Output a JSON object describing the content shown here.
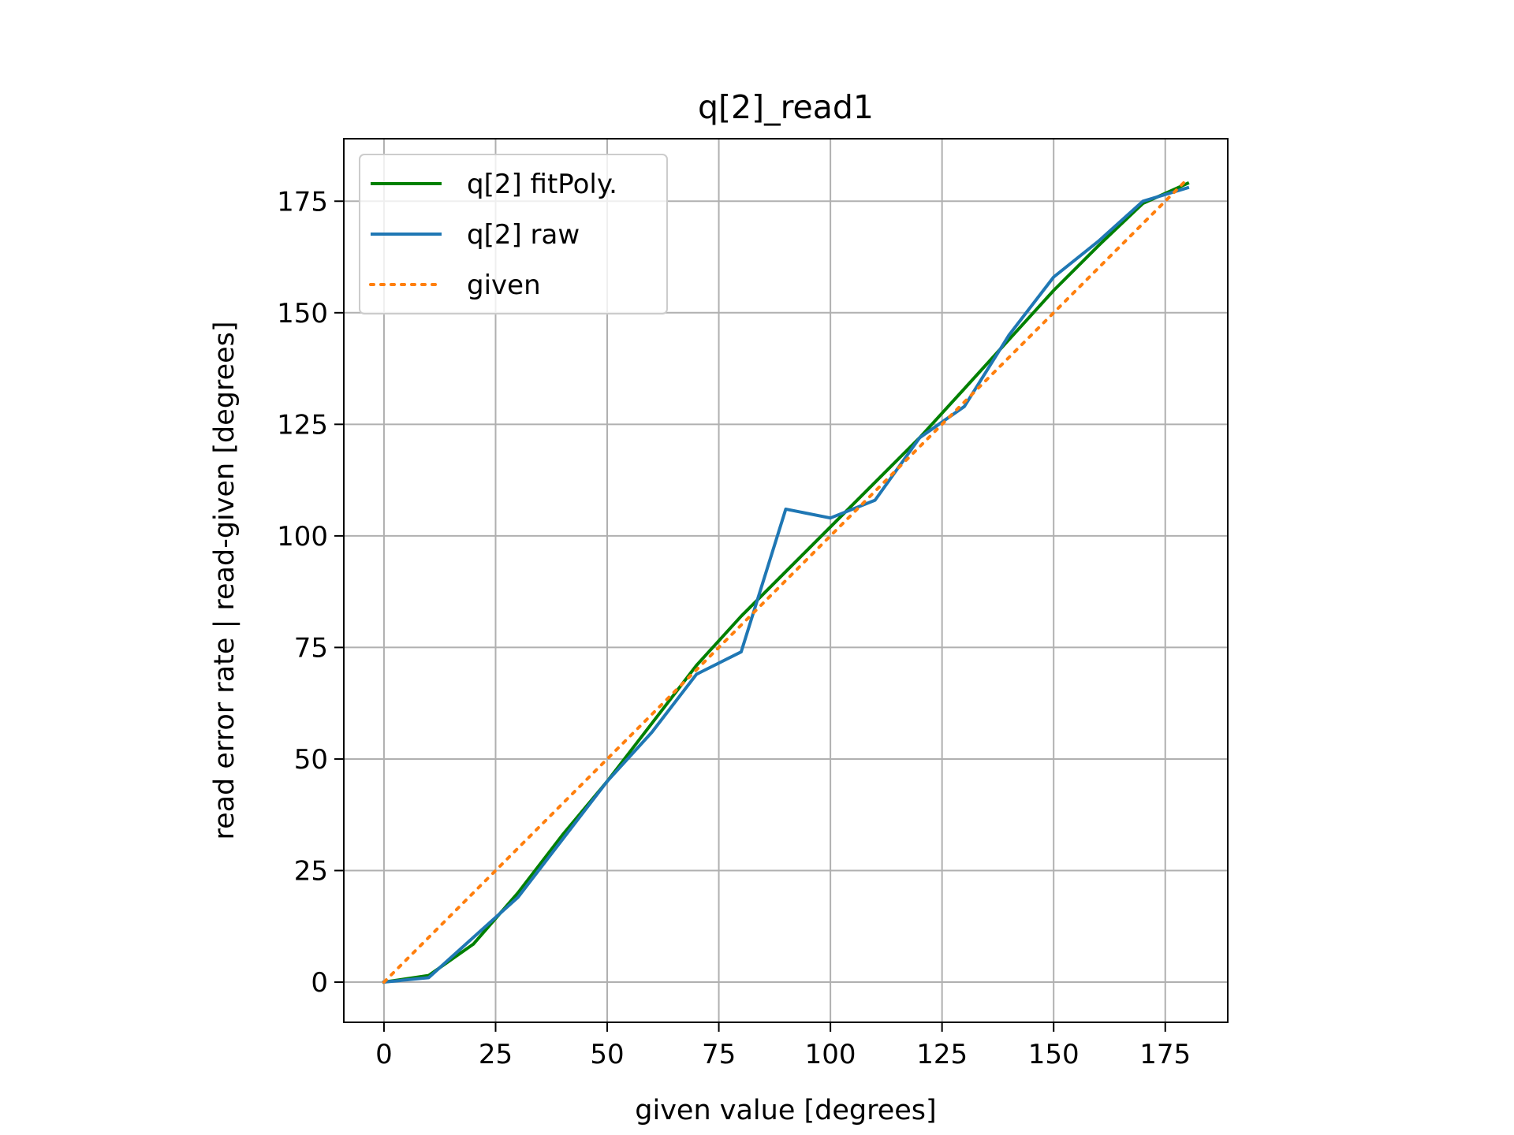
{
  "chart_data": {
    "type": "line",
    "title": "q[2]_read1",
    "xlabel": "given value [degrees]",
    "ylabel": "read error rate | read-given [degrees]",
    "xlim": [
      -9,
      189
    ],
    "ylim": [
      -9,
      189
    ],
    "xticks": [
      0,
      25,
      50,
      75,
      100,
      125,
      150,
      175
    ],
    "yticks": [
      0,
      25,
      50,
      75,
      100,
      125,
      150,
      175
    ],
    "grid": true,
    "legend_position": "upper-left",
    "series": [
      {
        "name": "q[2] fitPoly.",
        "color": "#008000",
        "style": "solid",
        "x": [
          0,
          10,
          20,
          30,
          40,
          50,
          60,
          70,
          80,
          90,
          100,
          110,
          120,
          130,
          140,
          150,
          160,
          170,
          180
        ],
        "y": [
          0,
          1.5,
          8.5,
          20,
          33,
          45,
          58,
          71,
          82,
          92,
          102,
          112,
          122,
          133,
          144,
          155,
          165,
          174.5,
          179
        ]
      },
      {
        "name": "q[2] raw",
        "color": "#1f77b4",
        "style": "solid",
        "x": [
          0,
          10,
          20,
          30,
          40,
          50,
          60,
          70,
          80,
          90,
          100,
          110,
          120,
          130,
          140,
          150,
          160,
          170,
          180
        ],
        "y": [
          0,
          1,
          10,
          19,
          32,
          45,
          56,
          69,
          74,
          106,
          104,
          108,
          122,
          129,
          145,
          158,
          166,
          175,
          178
        ]
      },
      {
        "name": "given",
        "color": "#ff7f0e",
        "style": "dotted",
        "x": [
          0,
          180
        ],
        "y": [
          0,
          180
        ]
      }
    ]
  }
}
